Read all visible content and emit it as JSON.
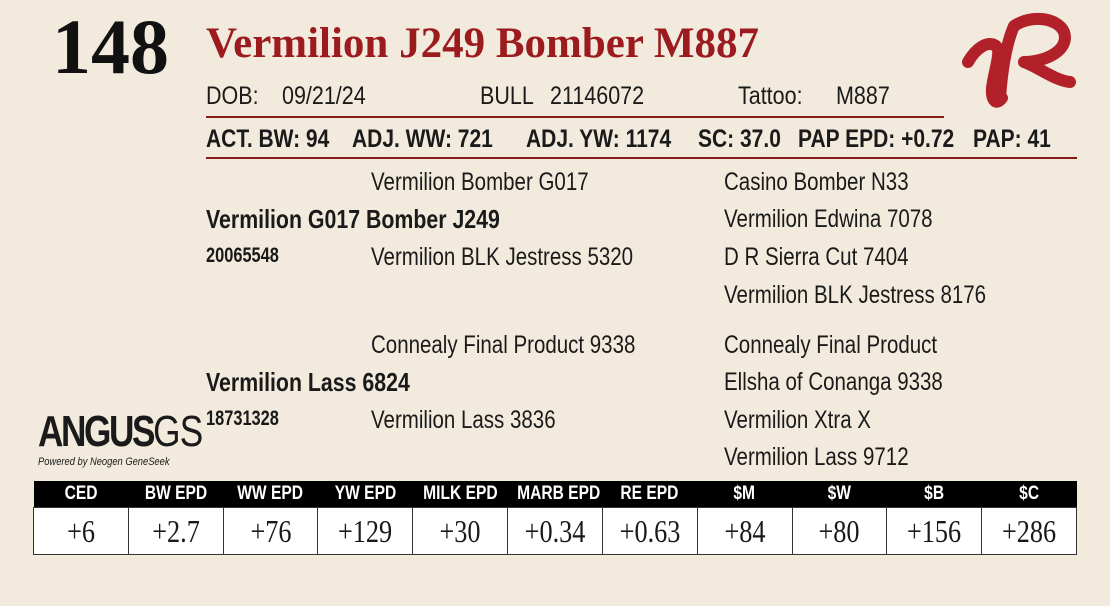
{
  "lot_number": "148",
  "animal_name": "Vermilion J249 Bomber M887",
  "dob_label": "DOB:",
  "dob_value": "09/21/24",
  "reg_label": "BULL",
  "reg_value": "21146072",
  "tattoo_label": "Tattoo:",
  "tattoo_value": "M887",
  "stats": {
    "act_bw": "ACT. BW: 94",
    "adj_ww": "ADJ. WW: 721",
    "adj_yw": "ADJ. YW: 1174",
    "sc": "SC: 37.0",
    "pap_epd": "PAP EPD: +0.72",
    "pap": "PAP: 41"
  },
  "pedigree": {
    "sire": "Vermilion G017 Bomber J249",
    "sire_reg": "20065548",
    "sire_sire": "Vermilion Bomber G017",
    "sire_dam": "Vermilion BLK Jestress 5320",
    "ss_sire": "Casino Bomber N33",
    "ss_dam": "Vermilion Edwina 7078",
    "sd_sire": "D R Sierra Cut 7404",
    "sd_dam": "Vermilion BLK Jestress 8176",
    "dam": "Vermilion Lass 6824",
    "dam_reg": "18731328",
    "dam_sire": "Connealy Final Product 9338",
    "dam_dam": "Vermilion Lass 3836",
    "ds_sire": "Connealy Final Product",
    "ds_dam": "Ellsha of Conanga 9338",
    "dd_sire": "Vermilion Xtra X",
    "dd_dam": "Vermilion Lass 9712"
  },
  "brand": {
    "angus": "ANGUS",
    "gs": "GS",
    "powered": "Powered by Neogen GeneSeek"
  },
  "colors": {
    "name_red": "#9b1b1f",
    "logo_red": "#b2202a",
    "background": "#f2ebdd"
  },
  "epd_headers": [
    "CED",
    "BW EPD",
    "WW EPD",
    "YW EPD",
    "MILK EPD",
    "MARB EPD",
    "RE EPD",
    "$M",
    "$W",
    "$B",
    "$C"
  ],
  "epd_values": [
    "+6",
    "+2.7",
    "+76",
    "+129",
    "+30",
    "+0.34",
    "+0.63",
    "+84",
    "+80",
    "+156",
    "+286"
  ]
}
